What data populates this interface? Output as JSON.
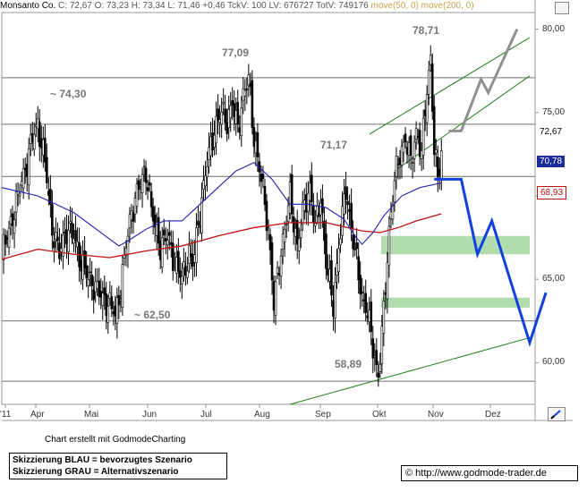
{
  "header": {
    "instrument": "Monsanto Co.",
    "quote": "C: 72,67 O: 73,23 H: 73,34 L: 71,46 +0,46 TckV: 100 LV: 676727 TotV: 749176",
    "ma_label": "move(50, 0) move(200, 0)"
  },
  "colors": {
    "candle": "#000000",
    "ma50": "#2020b0",
    "ma200": "#c01010",
    "scenario_blue": "#1040e0",
    "scenario_gray": "#909090",
    "channel": "#208020",
    "zone": "#b0dcb0",
    "hline": "#707070"
  },
  "annotations": [
    "~ 74,30",
    "77,09",
    "78,71",
    "71,17",
    "~ 62,50",
    "58,89"
  ],
  "price_tags": {
    "last": "72,67",
    "ma50": "70,78",
    "ma200": "68,93"
  },
  "credit": "Chart erstellt mit GodmodeCharting",
  "legend": {
    "blue": "Skizzierung BLAU = bevorzugtes Szenario",
    "gray": "Skizzierung GRAU = Alternativszenario"
  },
  "source": "© http://www.godmode-trader.de",
  "chart_data": {
    "type": "candlestick",
    "x_labels": [
      "'11",
      "Apr",
      "Mai",
      "Jun",
      "Jul",
      "Aug",
      "Sep",
      "Okt",
      "Nov",
      "Dez"
    ],
    "y_ticks": [
      "60,00",
      "65,00",
      "70,00",
      "75,00",
      "80,00"
    ],
    "ylim": [
      57.5,
      81.0
    ],
    "x_range": [
      0,
      296
    ],
    "horizontal_levels": [
      77.09,
      74.3,
      71.17,
      62.5,
      58.89
    ],
    "close_series": [
      [
        0,
        66.5
      ],
      [
        4,
        68.0
      ],
      [
        8,
        69.5
      ],
      [
        10,
        70.5
      ],
      [
        14,
        72.0
      ],
      [
        17,
        73.5
      ],
      [
        20,
        74.3
      ],
      [
        24,
        72.0
      ],
      [
        28,
        68.0
      ],
      [
        32,
        66.5
      ],
      [
        36,
        68.0
      ],
      [
        40,
        67.5
      ],
      [
        44,
        66.0
      ],
      [
        48,
        65.0
      ],
      [
        52,
        64.5
      ],
      [
        56,
        63.8
      ],
      [
        60,
        63.5
      ],
      [
        63,
        62.7
      ],
      [
        66,
        64.5
      ],
      [
        69,
        67.0
      ],
      [
        72,
        69.0
      ],
      [
        76,
        70.5
      ],
      [
        80,
        71.5
      ],
      [
        84,
        68.5
      ],
      [
        88,
        67.0
      ],
      [
        92,
        67.5
      ],
      [
        96,
        66.0
      ],
      [
        100,
        65.0
      ],
      [
        104,
        66.5
      ],
      [
        106,
        65.8
      ],
      [
        110,
        69.0
      ],
      [
        114,
        72.0
      ],
      [
        118,
        74.0
      ],
      [
        122,
        75.0
      ],
      [
        125,
        74.5
      ],
      [
        128,
        75.5
      ],
      [
        131,
        74.0
      ],
      [
        134,
        76.0
      ],
      [
        137,
        77.0
      ],
      [
        140,
        73.5
      ],
      [
        144,
        71.0
      ],
      [
        148,
        68.0
      ],
      [
        151,
        63.5
      ],
      [
        154,
        66.0
      ],
      [
        157,
        68.0
      ],
      [
        160,
        70.0
      ],
      [
        164,
        67.0
      ],
      [
        168,
        69.5
      ],
      [
        171,
        70.5
      ],
      [
        174,
        68.0
      ],
      [
        177,
        70.0
      ],
      [
        180,
        66.0
      ],
      [
        184,
        63.5
      ],
      [
        187,
        67.0
      ],
      [
        191,
        70.5
      ],
      [
        194,
        68.0
      ],
      [
        197,
        66.0
      ],
      [
        200,
        64.0
      ],
      [
        203,
        63.0
      ],
      [
        206,
        61.0
      ],
      [
        209,
        59.2
      ],
      [
        212,
        63.0
      ],
      [
        215,
        68.0
      ],
      [
        218,
        71.0
      ],
      [
        221,
        72.5
      ],
      [
        224,
        73.5
      ],
      [
        227,
        72.0
      ],
      [
        230,
        74.0
      ],
      [
        233,
        72.5
      ],
      [
        236,
        76.5
      ],
      [
        238,
        78.3
      ],
      [
        240,
        72.8
      ],
      [
        242,
        71.0
      ],
      [
        244,
        72.67
      ]
    ],
    "ma50_series": [
      [
        0,
        70.5
      ],
      [
        20,
        70.0
      ],
      [
        40,
        69.0
      ],
      [
        55,
        67.8
      ],
      [
        65,
        67.0
      ],
      [
        70,
        67.3
      ],
      [
        80,
        68.0
      ],
      [
        90,
        68.5
      ],
      [
        100,
        68.5
      ],
      [
        110,
        69.5
      ],
      [
        120,
        70.5
      ],
      [
        130,
        71.5
      ],
      [
        140,
        72.0
      ],
      [
        150,
        71.0
      ],
      [
        160,
        69.5
      ],
      [
        170,
        69.5
      ],
      [
        180,
        69.3
      ],
      [
        190,
        68.6
      ],
      [
        196,
        67.6
      ],
      [
        200,
        67.1
      ],
      [
        206,
        67.8
      ],
      [
        212,
        68.8
      ],
      [
        222,
        70.0
      ],
      [
        232,
        70.5
      ],
      [
        244,
        70.78
      ]
    ],
    "ma200_series": [
      [
        0,
        66.2
      ],
      [
        20,
        66.8
      ],
      [
        40,
        66.5
      ],
      [
        60,
        66.3
      ],
      [
        80,
        66.7
      ],
      [
        100,
        67.0
      ],
      [
        120,
        67.6
      ],
      [
        140,
        68.1
      ],
      [
        160,
        68.4
      ],
      [
        180,
        68.4
      ],
      [
        200,
        67.9
      ],
      [
        210,
        67.8
      ],
      [
        220,
        68.1
      ],
      [
        230,
        68.5
      ],
      [
        244,
        68.93
      ]
    ],
    "scenario_blue": [
      [
        240,
        71.0
      ],
      [
        255,
        71.0
      ],
      [
        264,
        66.5
      ],
      [
        272,
        68.5
      ],
      [
        293,
        61.2
      ],
      [
        302,
        64.2
      ]
    ],
    "scenario_gray": [
      [
        248,
        73.9
      ],
      [
        255,
        73.9
      ],
      [
        266,
        77.0
      ],
      [
        270,
        76.2
      ],
      [
        286,
        80.0
      ]
    ],
    "support_zones": [
      [
        66.5,
        67.6
      ],
      [
        63.3,
        63.9
      ]
    ],
    "channels": [
      {
        "from": [
          218,
          71.5
        ],
        "to": [
          293,
          77.2
        ]
      },
      {
        "from": [
          204,
          73.7
        ],
        "to": [
          293,
          79.5
        ]
      },
      {
        "from": [
          160,
          57.5
        ],
        "to": [
          293,
          61.5
        ]
      }
    ]
  }
}
